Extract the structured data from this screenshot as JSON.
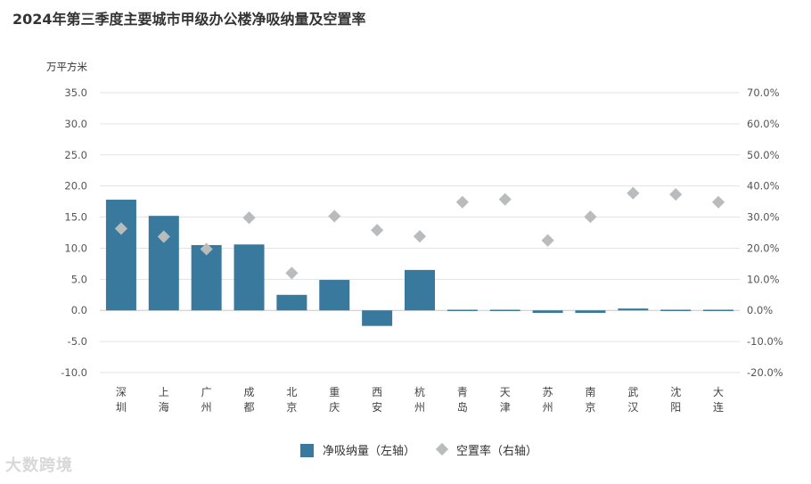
{
  "chart_data": {
    "type": "bar",
    "title": "2024年第三季度主要城市甲级办公楼净吸纳量及空置率",
    "y_left_unit": "万平方米",
    "categories": [
      "深圳",
      "上海",
      "广州",
      "成都",
      "北京",
      "重庆",
      "西安",
      "杭州",
      "青岛",
      "天津",
      "苏州",
      "南京",
      "武汉",
      "沈阳",
      "大连"
    ],
    "category_lines": [
      [
        "深",
        "圳"
      ],
      [
        "上",
        "海"
      ],
      [
        "广",
        "州"
      ],
      [
        "成",
        "都"
      ],
      [
        "北",
        "京"
      ],
      [
        "重",
        "庆"
      ],
      [
        "西",
        "安"
      ],
      [
        "杭",
        "州"
      ],
      [
        "青",
        "岛"
      ],
      [
        "天",
        "津"
      ],
      [
        "苏",
        "州"
      ],
      [
        "南",
        "京"
      ],
      [
        "武",
        "汉"
      ],
      [
        "沈",
        "阳"
      ],
      [
        "大",
        "连"
      ]
    ],
    "series": [
      {
        "name": "净吸纳量（左轴）",
        "type": "bar",
        "axis": "left",
        "values": [
          17.8,
          15.2,
          10.5,
          10.6,
          2.5,
          4.9,
          -2.5,
          6.5,
          0.1,
          0.1,
          -0.4,
          -0.4,
          0.3,
          0.1,
          0.1
        ]
      },
      {
        "name": "空置率（右轴）",
        "type": "scatter",
        "axis": "right",
        "values": [
          26.3,
          23.7,
          19.7,
          29.8,
          12.0,
          30.3,
          25.8,
          23.8,
          34.8,
          35.7,
          22.5,
          30.1,
          37.7,
          37.3,
          34.8
        ]
      }
    ],
    "y_left": {
      "min": -10,
      "max": 35,
      "step": 5,
      "tick_labels": [
        "-10.0",
        "-5.0",
        "0.0",
        "5.0",
        "10.0",
        "15.0",
        "20.0",
        "25.0",
        "30.0",
        "35.0"
      ]
    },
    "y_right": {
      "min": -20,
      "max": 70,
      "step": 10,
      "tick_labels": [
        "-20.0%",
        "-10.0%",
        "0.0%",
        "10.0%",
        "20.0%",
        "30.0%",
        "40.0%",
        "50.0%",
        "60.0%",
        "70.0%"
      ]
    },
    "grid": true,
    "legend_position": "bottom-center"
  },
  "colors": {
    "bar": "#3a799e",
    "marker": "#b9bcbd",
    "grid": "#e3e3e3",
    "zero_line": "#c8c8c8"
  },
  "watermark": "大数跨境"
}
